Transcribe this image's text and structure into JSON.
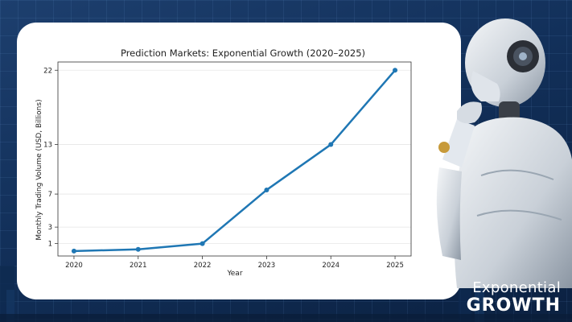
{
  "colors": {
    "background": "#12305a",
    "card": "#ffffff",
    "series": "#1f77b4",
    "brand_text": "#ffffff"
  },
  "brand": {
    "line1": "Exponential",
    "line2": "GROWTH"
  },
  "decor": {
    "robot_icon": "humanoid-robot-thinking-icon"
  },
  "chart_data": {
    "type": "line",
    "title": "Prediction Markets: Exponential Growth (2020–2025)",
    "xlabel": "Year",
    "ylabel": "Monthly Trading Volume (USD, Billions)",
    "x": [
      2020,
      2021,
      2022,
      2023,
      2024,
      2025
    ],
    "xticks": [
      "2020",
      "2021",
      "2022",
      "2023",
      "2024",
      "2025"
    ],
    "yticks": [
      1,
      3,
      7,
      13,
      22
    ],
    "ylim": [
      -0.5,
      23
    ],
    "grid": "y",
    "series": [
      {
        "name": "Monthly Trading Volume",
        "values": [
          0.1,
          0.3,
          1.0,
          7.5,
          13.0,
          22.0
        ]
      }
    ]
  }
}
